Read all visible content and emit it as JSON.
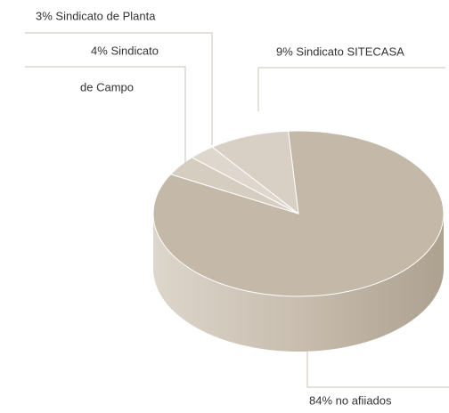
{
  "chart_data": {
    "type": "pie3d",
    "categories": [
      "84% no afiiados",
      [
        "4% Sindicato",
        "de Campo"
      ],
      "3% Sindicato de Planta",
      "9% Sindicato SITECASA"
    ],
    "values": [
      84,
      4,
      3,
      9
    ],
    "colors": [
      "#c4b8a8",
      "#d6cdc1",
      "#ded7cd",
      "#d9d0c5"
    ]
  }
}
